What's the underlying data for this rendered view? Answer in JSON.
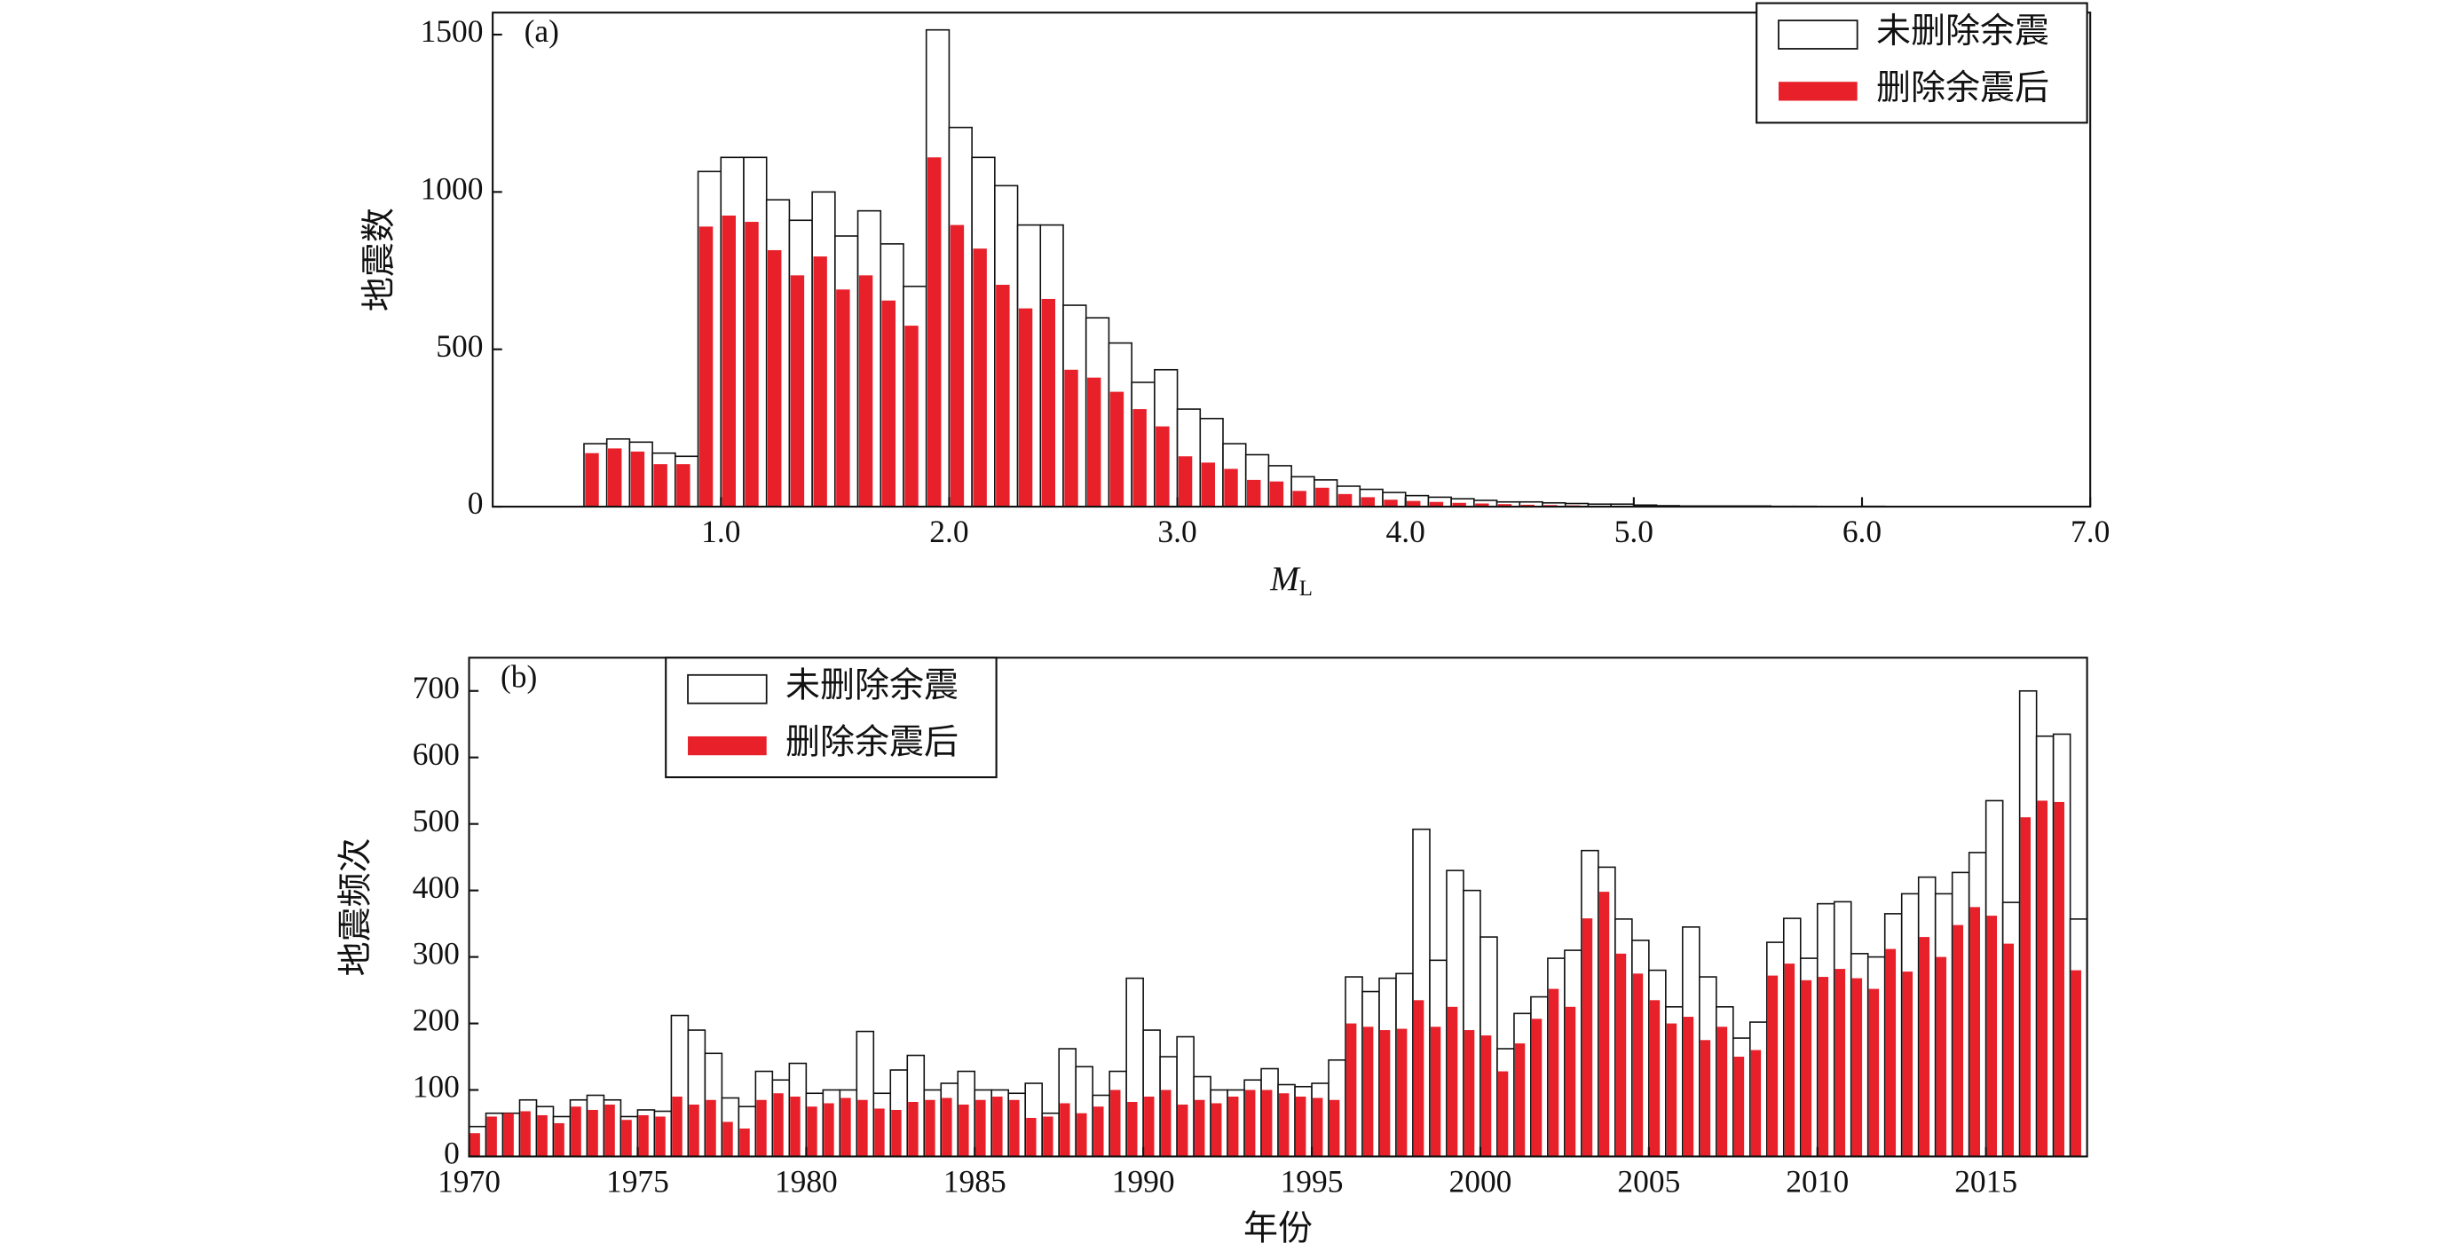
{
  "chart_data": [
    {
      "type": "histogram",
      "annotation": "(a)",
      "y_label": "地震数",
      "x_label": "M",
      "x_label_sub": "L",
      "legend": "upper right",
      "bins": [
        0.4,
        0.5,
        0.6,
        0.7,
        0.8,
        0.9,
        1.0,
        1.1,
        1.2,
        1.3,
        1.4,
        1.5,
        1.6,
        1.7,
        1.8,
        1.9,
        2.0,
        2.1,
        2.2,
        2.3,
        2.4,
        2.5,
        2.6,
        2.7,
        2.8,
        2.9,
        3.0,
        3.1,
        3.2,
        3.3,
        3.4,
        3.5,
        3.6,
        3.7,
        3.8,
        3.9,
        4.0,
        4.1,
        4.2,
        4.3,
        4.4,
        4.5,
        4.6,
        4.7,
        4.8,
        4.9,
        5.0,
        5.1,
        5.2,
        5.3,
        5.4,
        5.5,
        5.6,
        5.7,
        5.8,
        5.9,
        6.0,
        6.1
      ],
      "series": [
        {
          "name": "未删除余震",
          "color": "#ffffff",
          "values": [
            200,
            215,
            205,
            170,
            160,
            1065,
            1110,
            1110,
            975,
            910,
            1000,
            860,
            940,
            835,
            700,
            1515,
            1205,
            1110,
            1020,
            895,
            895,
            640,
            600,
            520,
            395,
            435,
            310,
            280,
            200,
            165,
            130,
            95,
            85,
            65,
            55,
            45,
            35,
            30,
            25,
            20,
            15,
            15,
            12,
            10,
            8,
            8,
            5,
            3,
            2,
            2,
            2,
            2,
            1,
            1,
            0,
            0,
            1
          ]
        },
        {
          "name": "删除余震后",
          "color": "#e8202a",
          "values": [
            170,
            185,
            175,
            135,
            135,
            890,
            925,
            905,
            815,
            735,
            795,
            690,
            735,
            655,
            575,
            1110,
            895,
            820,
            705,
            630,
            660,
            435,
            410,
            365,
            310,
            255,
            160,
            140,
            120,
            85,
            80,
            50,
            60,
            40,
            30,
            22,
            18,
            15,
            12,
            10,
            8,
            6,
            5,
            4,
            3,
            3,
            2,
            1,
            1,
            1,
            1,
            1,
            0,
            0,
            0,
            0,
            0
          ]
        }
      ],
      "xlim": [
        0,
        7
      ],
      "xticks": [
        {
          "value": 1,
          "label": "1.0"
        },
        {
          "value": 2,
          "label": "2.0"
        },
        {
          "value": 3,
          "label": "3.0"
        },
        {
          "value": 4,
          "label": "4.0"
        },
        {
          "value": 5,
          "label": "5.0"
        },
        {
          "value": 6,
          "label": "6.0"
        },
        {
          "value": 7,
          "label": "7.0"
        }
      ],
      "ylim": [
        0,
        1570
      ],
      "yticks": [
        0,
        500,
        1000,
        1500
      ]
    },
    {
      "type": "histogram",
      "annotation": "(b)",
      "y_label": "地震频次",
      "x_label": "年份",
      "legend": "upper left",
      "bins": [
        1970,
        1970.5,
        1971,
        1971.5,
        1972,
        1972.5,
        1973,
        1973.5,
        1974,
        1974.5,
        1975,
        1975.5,
        1976,
        1976.5,
        1977,
        1977.5,
        1978,
        1978.5,
        1979,
        1979.5,
        1980,
        1980.5,
        1981,
        1981.5,
        1982,
        1982.5,
        1983,
        1983.5,
        1984,
        1984.5,
        1985,
        1985.5,
        1986,
        1986.5,
        1987,
        1987.5,
        1988,
        1988.5,
        1989,
        1989.5,
        1990,
        1990.5,
        1991,
        1991.5,
        1992,
        1992.5,
        1993,
        1993.5,
        1994,
        1994.5,
        1995,
        1995.5,
        1996,
        1996.5,
        1997,
        1997.5,
        1998,
        1998.5,
        1999,
        1999.5,
        2000,
        2000.5,
        2001,
        2001.5,
        2002,
        2002.5,
        2003,
        2003.5,
        2004,
        2004.5,
        2005,
        2005.5,
        2006,
        2006.5,
        2007,
        2007.5,
        2008,
        2008.5,
        2009,
        2009.5,
        2010,
        2010.5,
        2011,
        2011.5,
        2012,
        2012.5,
        2013,
        2013.5,
        2014,
        2014.5,
        2015,
        2015.5,
        2016,
        2016.5,
        2017,
        2017.5,
        2018
      ],
      "series": [
        {
          "name": "未删除余震",
          "color": "#ffffff",
          "values": [
            45,
            65,
            65,
            85,
            75,
            60,
            85,
            92,
            85,
            60,
            70,
            68,
            212,
            190,
            155,
            88,
            75,
            128,
            115,
            140,
            95,
            100,
            100,
            188,
            95,
            130,
            152,
            100,
            110,
            128,
            100,
            100,
            95,
            110,
            65,
            162,
            135,
            92,
            128,
            268,
            190,
            150,
            180,
            120,
            100,
            100,
            115,
            132,
            108,
            105,
            110,
            145,
            270,
            248,
            268,
            275,
            492,
            295,
            430,
            400,
            330,
            162,
            215,
            240,
            298,
            310,
            460,
            435,
            357,
            325,
            280,
            225,
            345,
            270,
            225,
            178,
            202,
            322,
            358,
            298,
            380,
            383,
            305,
            300,
            365,
            395,
            420,
            395,
            427,
            457,
            535,
            382,
            700,
            632,
            635,
            357
          ]
        },
        {
          "name": "删除余震后",
          "color": "#e8202a",
          "values": [
            35,
            60,
            65,
            68,
            62,
            50,
            75,
            70,
            78,
            55,
            62,
            60,
            90,
            78,
            85,
            52,
            42,
            85,
            95,
            90,
            75,
            80,
            88,
            85,
            72,
            70,
            82,
            85,
            88,
            78,
            85,
            90,
            85,
            58,
            60,
            80,
            65,
            75,
            100,
            82,
            90,
            100,
            78,
            85,
            80,
            90,
            100,
            100,
            95,
            90,
            88,
            85,
            200,
            195,
            190,
            192,
            235,
            195,
            225,
            190,
            182,
            128,
            170,
            207,
            252,
            225,
            358,
            398,
            305,
            275,
            235,
            200,
            210,
            175,
            195,
            150,
            160,
            272,
            290,
            265,
            270,
            282,
            268,
            252,
            312,
            278,
            330,
            300,
            348,
            375,
            362,
            320,
            510,
            535,
            533,
            280
          ]
        }
      ],
      "xlim": [
        1970,
        2018
      ],
      "xticks": [
        1970,
        1975,
        1980,
        1985,
        1990,
        1995,
        2000,
        2005,
        2010,
        2015
      ],
      "ylim": [
        0,
        750
      ],
      "yticks": [
        0,
        100,
        200,
        300,
        400,
        500,
        600,
        700
      ]
    }
  ]
}
